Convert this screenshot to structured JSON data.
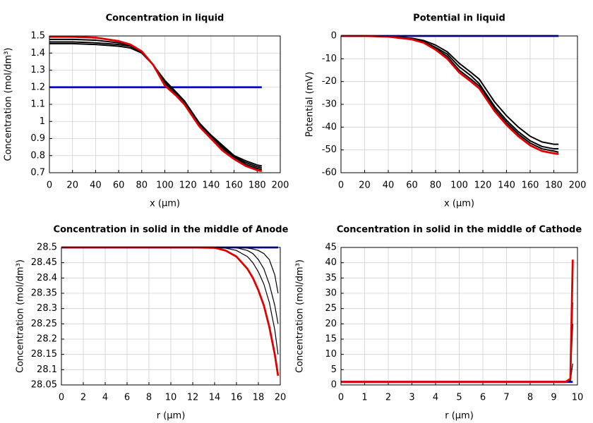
{
  "chart_data": [
    {
      "type": "line",
      "title": "Concentration in liquid",
      "xlabel": "x (µm)",
      "ylabel": "Concentration (mol/dm³)",
      "x": [
        0,
        20,
        40,
        60,
        70,
        80,
        90,
        100,
        110,
        117,
        130,
        140,
        150,
        160,
        170,
        180,
        184
      ],
      "series": [
        {
          "color": "#0000cc",
          "values": [
            1.2,
            1.2,
            1.2,
            1.2,
            1.2,
            1.2,
            1.2,
            1.2,
            1.2,
            1.2,
            1.2,
            1.2,
            1.2,
            1.2,
            1.2,
            1.2,
            1.2
          ]
        },
        {
          "color": "#000000",
          "values": [
            1.455,
            1.455,
            1.45,
            1.44,
            1.43,
            1.4,
            1.33,
            1.24,
            1.17,
            1.12,
            0.99,
            0.92,
            0.86,
            0.8,
            0.77,
            0.745,
            0.74
          ]
        },
        {
          "color": "#000000",
          "values": [
            1.465,
            1.465,
            1.46,
            1.45,
            1.44,
            1.405,
            1.33,
            1.23,
            1.165,
            1.115,
            0.985,
            0.915,
            0.85,
            0.795,
            0.76,
            0.735,
            0.73
          ]
        },
        {
          "color": "#000000",
          "values": [
            1.48,
            1.48,
            1.475,
            1.46,
            1.445,
            1.41,
            1.33,
            1.22,
            1.16,
            1.11,
            0.98,
            0.91,
            0.84,
            0.79,
            0.75,
            0.725,
            0.72
          ]
        },
        {
          "color": "#e00000",
          "values": [
            1.495,
            1.495,
            1.49,
            1.47,
            1.45,
            1.41,
            1.33,
            1.21,
            1.15,
            1.1,
            0.97,
            0.9,
            0.83,
            0.78,
            0.74,
            0.715,
            0.71
          ]
        }
      ],
      "xlim": [
        0,
        200
      ],
      "xticks": [
        0,
        20,
        40,
        60,
        80,
        100,
        120,
        140,
        160,
        180,
        200
      ],
      "ylim": [
        0.7,
        1.5
      ],
      "yticks": [
        0.7,
        0.8,
        0.9,
        1,
        1.1,
        1.2,
        1.3,
        1.4,
        1.5
      ],
      "grid": true
    },
    {
      "type": "line",
      "title": "Potential in liquid",
      "xlabel": "x (µm)",
      "ylabel": "Potential (mV)",
      "x": [
        0,
        20,
        40,
        60,
        70,
        80,
        90,
        100,
        110,
        117,
        130,
        140,
        150,
        160,
        170,
        180,
        184
      ],
      "series": [
        {
          "color": "#0000cc",
          "values": [
            0,
            0,
            0,
            0,
            0,
            0,
            0,
            0,
            0,
            0,
            0,
            0,
            0,
            0,
            0,
            0,
            0
          ]
        },
        {
          "color": "#000000",
          "values": [
            0,
            0,
            -0.2,
            -1,
            -2,
            -4,
            -7,
            -12,
            -16,
            -19,
            -29,
            -35,
            -40,
            -44,
            -46.5,
            -47.5,
            -47.5
          ]
        },
        {
          "color": "#000000",
          "values": [
            0,
            0,
            -0.2,
            -1.2,
            -2.5,
            -5,
            -8,
            -13.5,
            -17.5,
            -21,
            -31,
            -37,
            -42,
            -46,
            -48.5,
            -49.5,
            -49.5
          ]
        },
        {
          "color": "#000000",
          "values": [
            0,
            0,
            -0.3,
            -1.3,
            -2.7,
            -5.5,
            -9,
            -15,
            -19,
            -22,
            -32,
            -38,
            -43,
            -47,
            -49.5,
            -50.5,
            -51
          ]
        },
        {
          "color": "#e00000",
          "values": [
            0,
            0,
            -0.3,
            -1.5,
            -3,
            -6,
            -10,
            -16,
            -20,
            -23,
            -33,
            -39,
            -44,
            -48,
            -50.5,
            -51.5,
            -51.8
          ]
        }
      ],
      "xlim": [
        0,
        200
      ],
      "xticks": [
        0,
        20,
        40,
        60,
        80,
        100,
        120,
        140,
        160,
        180,
        200
      ],
      "ylim": [
        -60,
        0
      ],
      "yticks": [
        -60,
        -50,
        -40,
        -30,
        -20,
        -10,
        0
      ],
      "grid": true
    },
    {
      "type": "line",
      "title": "Concentration in solid in the middle of Anode",
      "xlabel": "r (µm)",
      "ylabel": "Concentration (mol/dm³)",
      "x": [
        0,
        2,
        4,
        6,
        8,
        10,
        12,
        14,
        15,
        16,
        17,
        17.5,
        18,
        18.5,
        19,
        19.5,
        19.8
      ],
      "series": [
        {
          "color": "#0000cc",
          "values": [
            28.5,
            28.5,
            28.5,
            28.5,
            28.5,
            28.5,
            28.5,
            28.5,
            28.5,
            28.5,
            28.5,
            28.5,
            28.5,
            28.5,
            28.5,
            28.5,
            28.5
          ]
        },
        {
          "color": "#000000",
          "values": [
            28.5,
            28.5,
            28.5,
            28.5,
            28.5,
            28.5,
            28.5,
            28.5,
            28.5,
            28.5,
            28.498,
            28.495,
            28.49,
            28.48,
            28.46,
            28.41,
            28.35
          ]
        },
        {
          "color": "#000000",
          "values": [
            28.5,
            28.5,
            28.5,
            28.5,
            28.5,
            28.5,
            28.5,
            28.5,
            28.5,
            28.499,
            28.49,
            28.48,
            28.46,
            28.43,
            28.38,
            28.31,
            28.25
          ]
        },
        {
          "color": "#000000",
          "values": [
            28.5,
            28.5,
            28.5,
            28.5,
            28.5,
            28.5,
            28.5,
            28.5,
            28.498,
            28.49,
            28.47,
            28.45,
            28.42,
            28.38,
            28.32,
            28.23,
            28.15
          ]
        },
        {
          "color": "#e00000",
          "values": [
            28.5,
            28.5,
            28.5,
            28.5,
            28.5,
            28.5,
            28.5,
            28.499,
            28.49,
            28.47,
            28.43,
            28.4,
            28.36,
            28.31,
            28.24,
            28.15,
            28.08
          ]
        }
      ],
      "xlim": [
        0,
        20
      ],
      "xticks": [
        0,
        2,
        4,
        6,
        8,
        10,
        12,
        14,
        16,
        18,
        20
      ],
      "ylim": [
        28.05,
        28.5
      ],
      "yticks": [
        28.05,
        28.1,
        28.15,
        28.2,
        28.25,
        28.3,
        28.35,
        28.4,
        28.45,
        28.5
      ],
      "grid": true
    },
    {
      "type": "line",
      "title": "Concentration in solid in the middle of Cathode",
      "xlabel": "r (µm)",
      "ylabel": "Concentration (mol/dm³)",
      "x": [
        0,
        1,
        2,
        3,
        4,
        5,
        6,
        7,
        8,
        9,
        9.5,
        9.7,
        9.8
      ],
      "series": [
        {
          "color": "#0000cc",
          "values": [
            1,
            1,
            1,
            1,
            1,
            1,
            1,
            1,
            1,
            1,
            1,
            1,
            1
          ]
        },
        {
          "color": "#000000",
          "values": [
            1,
            1,
            1,
            1,
            1,
            1,
            1,
            1,
            1,
            1,
            1,
            1.3,
            7
          ]
        },
        {
          "color": "#000000",
          "values": [
            1,
            1,
            1,
            1,
            1,
            1,
            1,
            1,
            1,
            1,
            1,
            1.6,
            20
          ]
        },
        {
          "color": "#000000",
          "values": [
            1,
            1,
            1,
            1,
            1,
            1,
            1,
            1,
            1,
            1,
            1,
            1.8,
            27
          ]
        },
        {
          "color": "#e00000",
          "values": [
            1,
            1,
            1,
            1,
            1,
            1,
            1,
            1,
            1,
            1,
            1,
            2,
            41
          ]
        }
      ],
      "xlim": [
        0,
        10
      ],
      "xticks": [
        0,
        1,
        2,
        3,
        4,
        5,
        6,
        7,
        8,
        9,
        10
      ],
      "ylim": [
        0,
        45
      ],
      "yticks": [
        0,
        5,
        10,
        15,
        20,
        25,
        30,
        35,
        40,
        45
      ],
      "grid": true
    }
  ]
}
